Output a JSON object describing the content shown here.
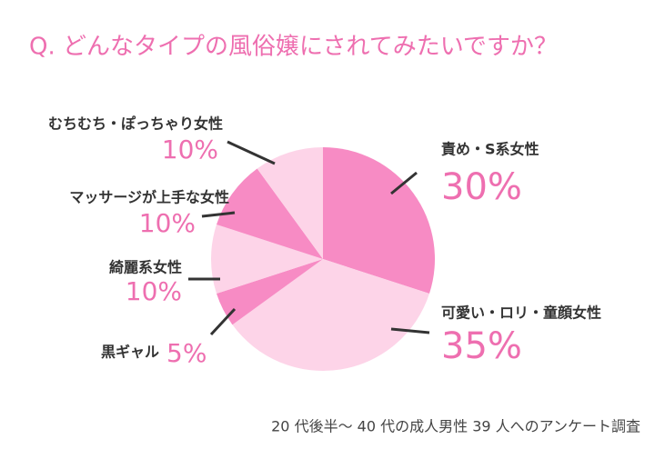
{
  "chart_data": {
    "type": "pie",
    "title": "Q. どんなタイプの風俗嬢にされてみたいですか？",
    "categories": [
      "責め・S系女性",
      "可愛い・ロリ・童顔女性",
      "黒ギャル",
      "綺麗系女性",
      "マッサージが上手な女性",
      "むちむち・ぽっちゃり女性"
    ],
    "values": [
      30,
      35,
      5,
      10,
      10,
      10
    ],
    "value_labels": [
      "30%",
      "35%",
      "5%",
      "10%",
      "10%",
      "10%"
    ],
    "colors": [
      "#f78bc4",
      "#fdd4e8",
      "#f78bc4",
      "#fdd4e8",
      "#f78bc4",
      "#fdd4e8"
    ],
    "note": "20 代後半〜 40 代の成人男性 39 人へのアンケート調査"
  }
}
